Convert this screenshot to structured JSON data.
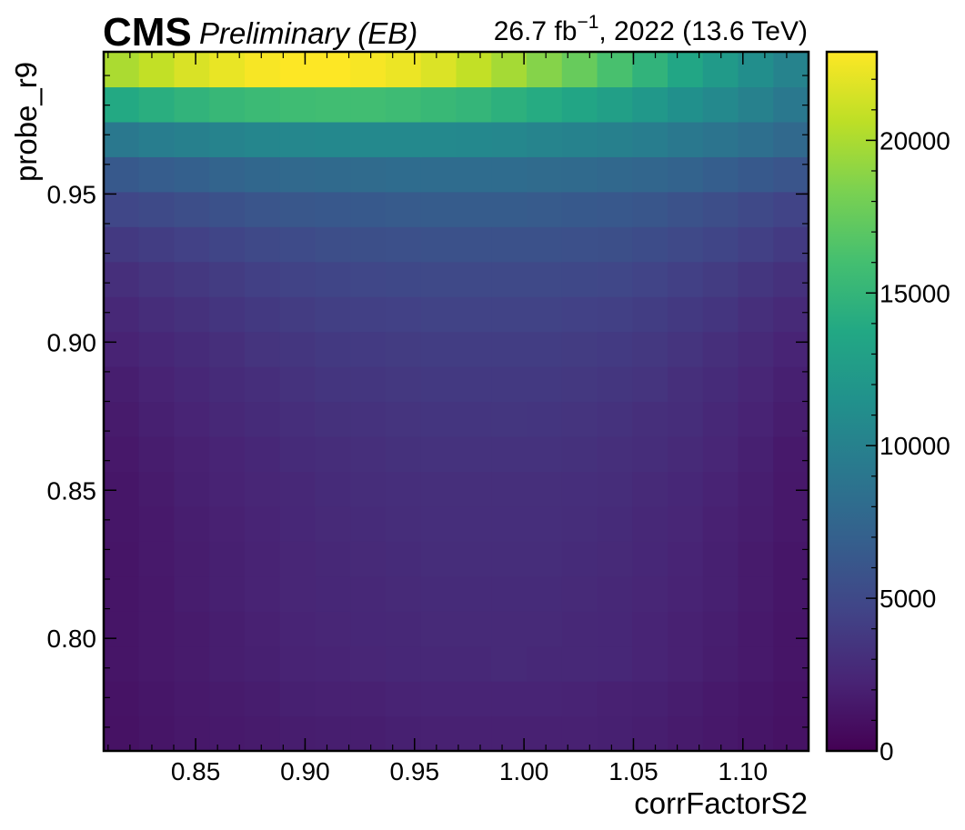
{
  "header": {
    "experiment": "CMS",
    "status": "Preliminary (EB)",
    "lumi_value": "26.7 fb",
    "lumi_exponent": "−1",
    "lumi_rest": ", 2022 (13.6 TeV)"
  },
  "chart_data": {
    "type": "heatmap",
    "xlabel": "corrFactorS2",
    "ylabel": "probe_r9",
    "xlim": [
      0.808,
      1.13
    ],
    "ylim": [
      0.762,
      0.998
    ],
    "x_ticks": [
      0.85,
      0.9,
      0.95,
      1.0,
      1.05,
      1.1
    ],
    "x_tick_labels": [
      "0.85",
      "0.90",
      "0.95",
      "1.00",
      "1.05",
      "1.10"
    ],
    "y_ticks": [
      0.8,
      0.85,
      0.9,
      0.95
    ],
    "y_tick_labels": [
      "0.80",
      "0.85",
      "0.90",
      "0.95"
    ],
    "x_edges": [
      0.808,
      0.8241,
      0.8402,
      0.8563,
      0.8724,
      0.8885,
      0.9046,
      0.9207,
      0.9368,
      0.9529,
      0.969,
      0.9851,
      1.0012,
      1.0173,
      1.0334,
      1.0495,
      1.0656,
      1.0817,
      1.0978,
      1.1139,
      1.13
    ],
    "y_edges": [
      0.762,
      0.7738,
      0.7856,
      0.7974,
      0.8092,
      0.821,
      0.8328,
      0.8446,
      0.8564,
      0.8682,
      0.88,
      0.8918,
      0.9036,
      0.9154,
      0.9272,
      0.939,
      0.9508,
      0.9626,
      0.9744,
      0.9862,
      0.998
    ],
    "z": [
      [
        1100,
        1300,
        1500,
        1600,
        1700,
        1800,
        1900,
        1900,
        2000,
        2100,
        2100,
        2100,
        2100,
        2100,
        2000,
        1900,
        1700,
        1500,
        1300,
        1100
      ],
      [
        1200,
        1400,
        1600,
        1700,
        1800,
        2000,
        2100,
        2100,
        2200,
        2300,
        2300,
        2300,
        2300,
        2200,
        2100,
        2000,
        1800,
        1600,
        1400,
        1200
      ],
      [
        1300,
        1500,
        1700,
        1900,
        2000,
        2200,
        2300,
        2400,
        2500,
        2600,
        2600,
        2700,
        2600,
        2600,
        2500,
        2300,
        2100,
        1800,
        1600,
        1300
      ],
      [
        1300,
        1500,
        1700,
        1900,
        2100,
        2300,
        2400,
        2500,
        2600,
        2700,
        2700,
        2700,
        2700,
        2600,
        2500,
        2300,
        2100,
        1900,
        1600,
        1300
      ],
      [
        1300,
        1500,
        1800,
        2000,
        2200,
        2400,
        2500,
        2600,
        2700,
        2800,
        2800,
        2800,
        2800,
        2700,
        2600,
        2400,
        2200,
        2000,
        1700,
        1400
      ],
      [
        1300,
        1600,
        1800,
        2000,
        2200,
        2400,
        2600,
        2700,
        2800,
        2900,
        2900,
        2900,
        2900,
        2800,
        2700,
        2500,
        2300,
        2000,
        1700,
        1400
      ],
      [
        1400,
        1600,
        1900,
        2100,
        2300,
        2500,
        2700,
        2800,
        2900,
        3000,
        3000,
        3000,
        3000,
        2900,
        2800,
        2600,
        2400,
        2100,
        1800,
        1500
      ],
      [
        1400,
        1700,
        2000,
        2200,
        2400,
        2600,
        2800,
        2900,
        3000,
        3100,
        3100,
        3100,
        3100,
        3000,
        2900,
        2700,
        2500,
        2200,
        1900,
        1500
      ],
      [
        1500,
        1800,
        2100,
        2300,
        2500,
        2800,
        2900,
        3100,
        3200,
        3300,
        3300,
        3300,
        3300,
        3200,
        3100,
        2900,
        2700,
        2400,
        2000,
        1600
      ],
      [
        1700,
        2000,
        2300,
        2600,
        2800,
        3000,
        3200,
        3300,
        3400,
        3500,
        3500,
        3600,
        3500,
        3400,
        3300,
        3100,
        2900,
        2600,
        2200,
        1800
      ],
      [
        1900,
        2200,
        2500,
        2800,
        3000,
        3300,
        3500,
        3600,
        3700,
        3800,
        3800,
        3800,
        3800,
        3700,
        3600,
        3400,
        3100,
        2800,
        2400,
        2000
      ],
      [
        2200,
        2500,
        2800,
        3100,
        3400,
        3600,
        3800,
        3900,
        4000,
        4100,
        4100,
        4100,
        4100,
        4000,
        3900,
        3700,
        3400,
        3100,
        2700,
        2300
      ],
      [
        2600,
        2900,
        3200,
        3500,
        3800,
        4000,
        4200,
        4300,
        4400,
        4500,
        4500,
        4500,
        4500,
        4400,
        4300,
        4100,
        3800,
        3500,
        3100,
        2700
      ],
      [
        3100,
        3400,
        3700,
        4000,
        4300,
        4500,
        4700,
        4800,
        4900,
        5000,
        5000,
        5000,
        5000,
        4900,
        4800,
        4600,
        4300,
        4000,
        3600,
        3200
      ],
      [
        3800,
        4100,
        4400,
        4700,
        5000,
        5200,
        5400,
        5500,
        5600,
        5700,
        5700,
        5700,
        5700,
        5600,
        5500,
        5300,
        5000,
        4700,
        4300,
        3900
      ],
      [
        4800,
        5100,
        5400,
        5700,
        6000,
        6200,
        6300,
        6400,
        6500,
        6600,
        6600,
        6600,
        6500,
        6400,
        6300,
        6100,
        5800,
        5400,
        5000,
        4600
      ],
      [
        6400,
        6700,
        7000,
        7300,
        7600,
        7800,
        7900,
        8000,
        8100,
        8100,
        8100,
        8100,
        8000,
        7900,
        7700,
        7500,
        7200,
        6800,
        6400,
        6000
      ],
      [
        9200,
        9600,
        9900,
        10200,
        10400,
        10500,
        10600,
        10700,
        10700,
        10700,
        10600,
        10500,
        10300,
        10100,
        9900,
        9600,
        9200,
        8800,
        8300,
        7800
      ],
      [
        13800,
        14300,
        14800,
        15200,
        15500,
        15700,
        15800,
        15800,
        15600,
        15300,
        15000,
        14500,
        14000,
        13400,
        12800,
        12100,
        11400,
        10700,
        10000,
        9200
      ],
      [
        20000,
        20800,
        21600,
        22200,
        22700,
        22900,
        22900,
        22700,
        22300,
        21700,
        20800,
        19800,
        18700,
        17500,
        16200,
        14800,
        13500,
        12300,
        11200,
        10200
      ]
    ],
    "colorbar": {
      "colormap": "viridis",
      "zlim": [
        0,
        22900
      ],
      "ticks": [
        0,
        5000,
        10000,
        15000,
        20000
      ],
      "tick_labels": [
        "0",
        "5000",
        "10000",
        "15000",
        "20000"
      ]
    },
    "grid": false
  }
}
